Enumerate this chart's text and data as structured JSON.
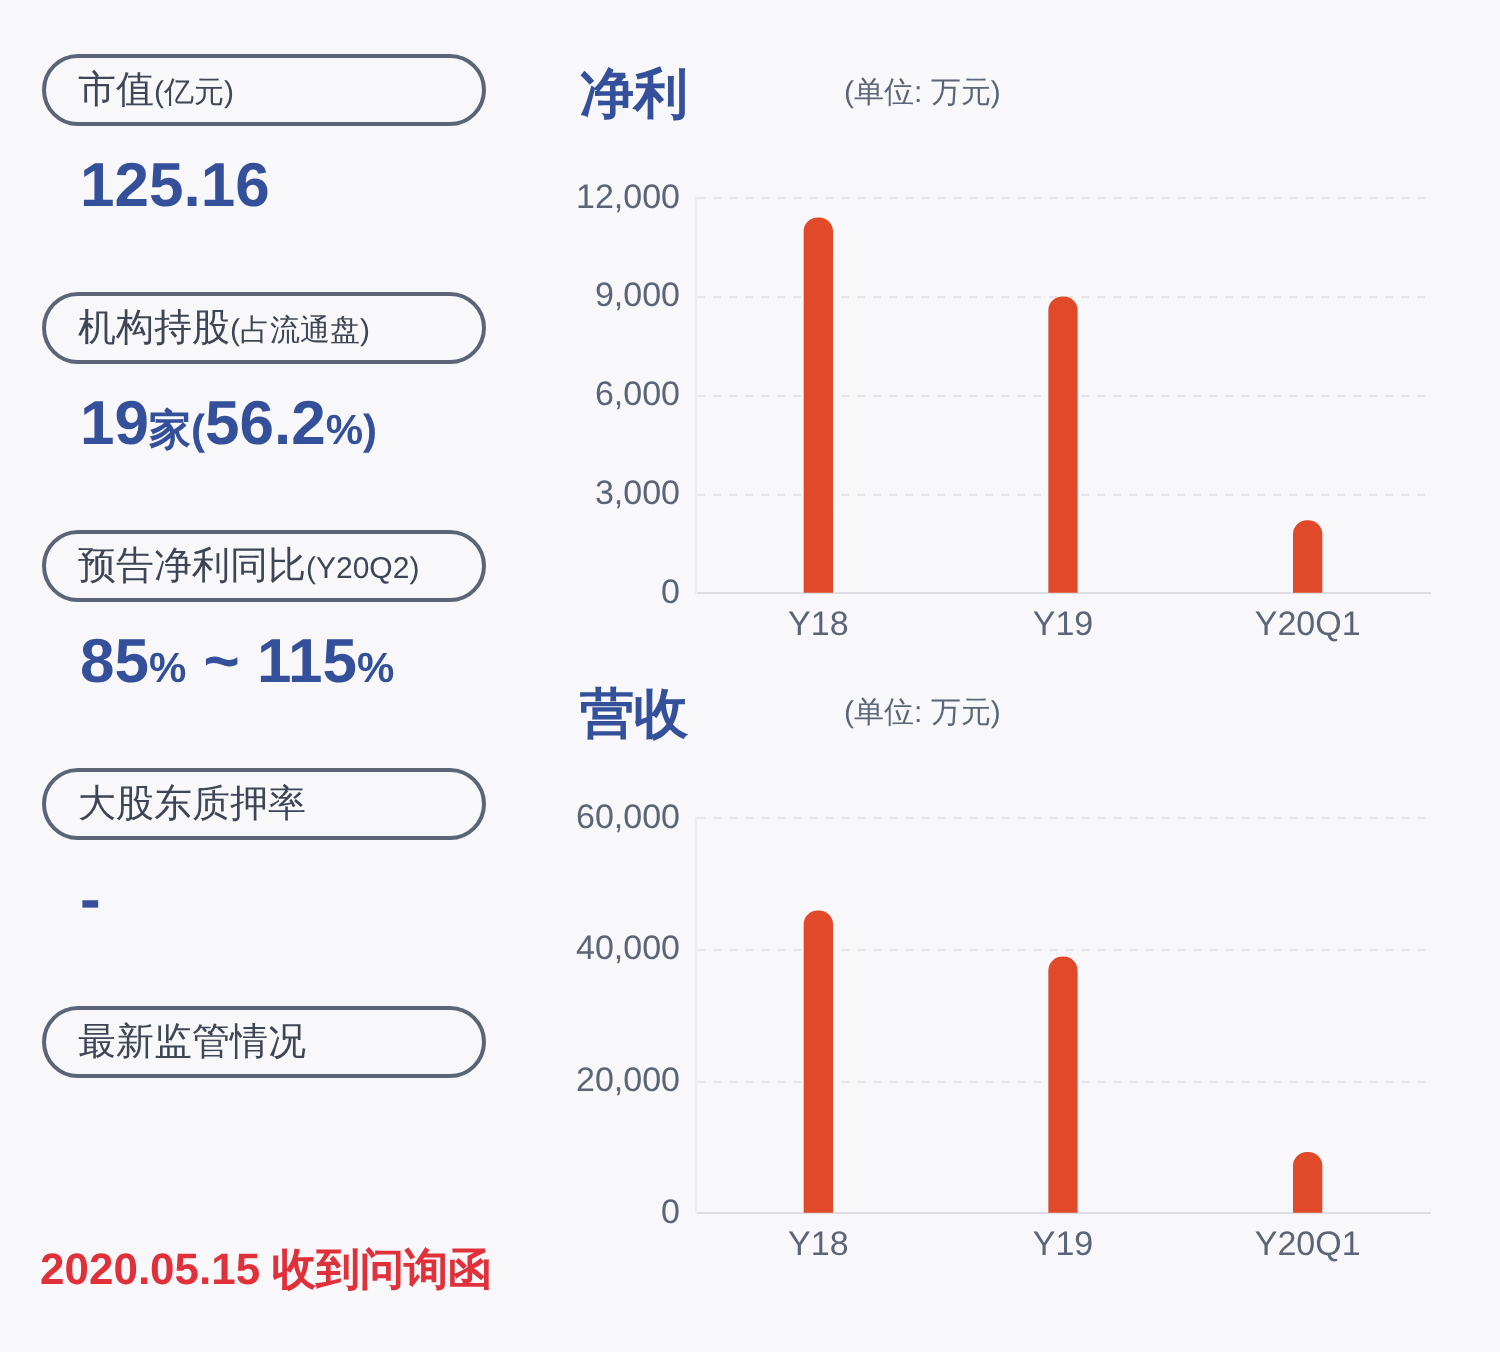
{
  "chart_data": [
    {
      "type": "other",
      "annotations": [
        "市值(亿元)",
        "125.16",
        "机构持股(占流通盘)",
        "19家(56.2%)",
        "预告净利同比(Y20Q2)",
        "85% ~ 115%",
        "大股东质押率",
        "-",
        "最新监管情况"
      ],
      "subtitle": "2020.05.15 收到问询函"
    },
    {
      "type": "bar",
      "title": "净利",
      "subtitle": "(单位: 万元)",
      "categories": [
        "Y18",
        "Y19",
        "Y20Q1"
      ],
      "values": [
        11400,
        9000,
        2200
      ],
      "color": "#e04a2a",
      "ylim": [
        0,
        12000
      ],
      "yticks": [
        {
          "value": 0,
          "label": "0"
        },
        {
          "value": 3000,
          "label": "3,000"
        },
        {
          "value": 6000,
          "label": "6,000"
        },
        {
          "value": 9000,
          "label": "9,000"
        },
        {
          "value": 12000,
          "label": "12,000"
        }
      ],
      "grid": "y",
      "legend": false
    },
    {
      "type": "bar",
      "title": "营收",
      "subtitle": "(单位: 万元)",
      "categories": [
        "Y18",
        "Y19",
        "Y20Q1"
      ],
      "values": [
        45900,
        38900,
        9200
      ],
      "color": "#e04a2a",
      "ylim": [
        0,
        60000
      ],
      "yticks": [
        {
          "value": 0,
          "label": "0"
        },
        {
          "value": 20000,
          "label": "20,000"
        },
        {
          "value": 40000,
          "label": "40,000"
        },
        {
          "value": 60000,
          "label": "60,000"
        }
      ],
      "grid": "y",
      "legend": false
    }
  ]
}
